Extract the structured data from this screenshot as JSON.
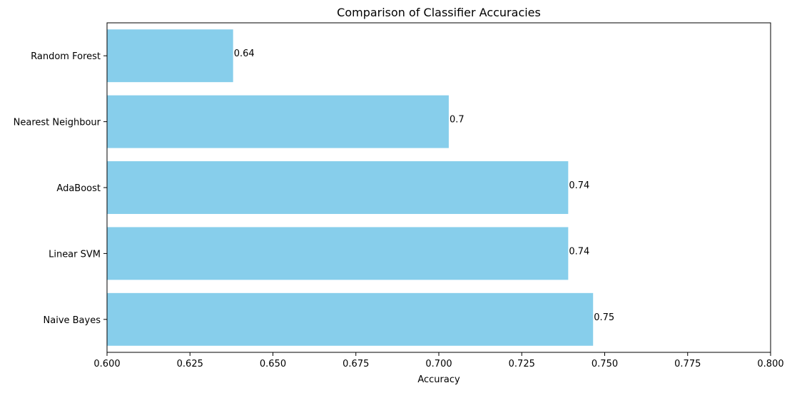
{
  "chart_data": {
    "type": "bar",
    "orientation": "horizontal",
    "title": "Comparison of Classifier Accuracies",
    "xlabel": "Accuracy",
    "ylabel": "",
    "xlim": [
      0.6,
      0.8
    ],
    "x_ticks": [
      0.6,
      0.625,
      0.65,
      0.675,
      0.7,
      0.725,
      0.75,
      0.775,
      0.8
    ],
    "x_tick_labels": [
      "0.600",
      "0.625",
      "0.650",
      "0.675",
      "0.700",
      "0.725",
      "0.750",
      "0.775",
      "0.800"
    ],
    "categories": [
      "Naive Bayes",
      "Linear SVM",
      "AdaBoost",
      "Nearest Neighbour",
      "Random Forest"
    ],
    "values": [
      0.7465,
      0.739,
      0.739,
      0.703,
      0.638
    ],
    "data_labels": [
      "0.75",
      "0.74",
      "0.74",
      "0.7",
      "0.64"
    ],
    "bar_color": "#87ceeb",
    "grid": false,
    "legend": "none"
  }
}
